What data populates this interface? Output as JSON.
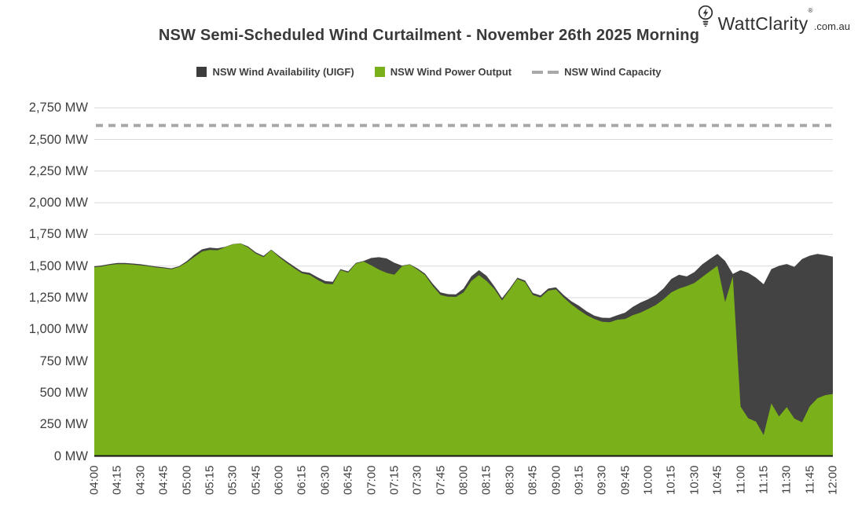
{
  "logo": {
    "brand": "WattClarity",
    "registered": "®",
    "suffix": ".com.au"
  },
  "title": "NSW Semi-Scheduled Wind Curtailment - November 26th 2025 Morning",
  "legend": [
    {
      "label": "NSW Wind Availability (UIGF)",
      "swatch": "square",
      "color": "#3d3d3d"
    },
    {
      "label": "NSW Wind Power Output",
      "swatch": "square",
      "color": "#7ab019"
    },
    {
      "label": "NSW Wind Capacity",
      "swatch": "dashes",
      "color": "#a8a8a8"
    }
  ],
  "chart_data": {
    "type": "area",
    "unit": "MW",
    "title": "NSW Semi-Scheduled Wind Curtailment - November 26th 2025 Morning",
    "x_start": "04:00",
    "x_end": "12:00",
    "x_point_interval_minutes": 5,
    "x_tick_labels": [
      "04:00",
      "04:15",
      "04:30",
      "04:45",
      "05:00",
      "05:15",
      "05:30",
      "05:45",
      "06:00",
      "06:15",
      "06:30",
      "06:45",
      "07:00",
      "07:15",
      "07:30",
      "07:45",
      "08:00",
      "08:15",
      "08:30",
      "08:45",
      "09:00",
      "09:15",
      "09:30",
      "09:45",
      "10:00",
      "10:15",
      "10:30",
      "10:45",
      "11:00",
      "11:15",
      "11:30",
      "11:45",
      "12:00"
    ],
    "ylim": [
      0,
      2750
    ],
    "ytick_step": 250,
    "ytick_labels": [
      "0 MW",
      "250 MW",
      "500 MW",
      "750 MW",
      "1,000 MW",
      "1,250 MW",
      "1,500 MW",
      "1,750 MW",
      "2,000 MW",
      "2,250 MW",
      "2,500 MW",
      "2,750 MW"
    ],
    "grid": "horizontal",
    "legend_position": "top",
    "colors": {
      "grid": "#d9d9d9",
      "baseline": "#141414"
    },
    "series": [
      {
        "name": "NSW Wind Availability (UIGF)",
        "kind": "area",
        "color": "#434343",
        "values": [
          1498,
          1505,
          1516,
          1524,
          1524,
          1520,
          1514,
          1506,
          1496,
          1490,
          1482,
          1498,
          1538,
          1590,
          1632,
          1645,
          1640,
          1652,
          1674,
          1680,
          1655,
          1608,
          1580,
          1630,
          1582,
          1538,
          1496,
          1456,
          1446,
          1412,
          1382,
          1376,
          1476,
          1458,
          1524,
          1540,
          1564,
          1570,
          1560,
          1526,
          1504,
          1514,
          1482,
          1440,
          1360,
          1292,
          1278,
          1276,
          1322,
          1418,
          1468,
          1422,
          1340,
          1246,
          1324,
          1408,
          1386,
          1288,
          1268,
          1322,
          1332,
          1272,
          1222,
          1186,
          1142,
          1108,
          1092,
          1090,
          1112,
          1132,
          1178,
          1212,
          1238,
          1272,
          1324,
          1398,
          1432,
          1418,
          1452,
          1512,
          1556,
          1596,
          1540,
          1438,
          1468,
          1446,
          1408,
          1356,
          1476,
          1502,
          1516,
          1494,
          1556,
          1582,
          1596,
          1586,
          1574
        ]
      },
      {
        "name": "NSW Wind Power Output",
        "kind": "area",
        "color": "#7ab019",
        "values": [
          1490,
          1497,
          1508,
          1515,
          1515,
          1511,
          1505,
          1499,
          1489,
          1483,
          1475,
          1492,
          1528,
          1572,
          1614,
          1628,
          1625,
          1648,
          1672,
          1678,
          1645,
          1598,
          1570,
          1626,
          1572,
          1525,
          1482,
          1442,
          1430,
          1392,
          1360,
          1356,
          1468,
          1448,
          1518,
          1536,
          1506,
          1472,
          1446,
          1432,
          1498,
          1512,
          1472,
          1428,
          1342,
          1272,
          1258,
          1256,
          1292,
          1382,
          1428,
          1382,
          1318,
          1228,
          1312,
          1398,
          1372,
          1272,
          1252,
          1306,
          1316,
          1252,
          1198,
          1152,
          1112,
          1082,
          1060,
          1056,
          1076,
          1082,
          1112,
          1132,
          1162,
          1192,
          1238,
          1292,
          1322,
          1342,
          1366,
          1412,
          1458,
          1502,
          1215,
          1418,
          390,
          298,
          272,
          165,
          415,
          312,
          386,
          295,
          266,
          392,
          456,
          480,
          490
        ]
      },
      {
        "name": "NSW Wind Capacity",
        "kind": "dashed-line",
        "color": "#a8a8a8",
        "value": 2610
      }
    ]
  }
}
